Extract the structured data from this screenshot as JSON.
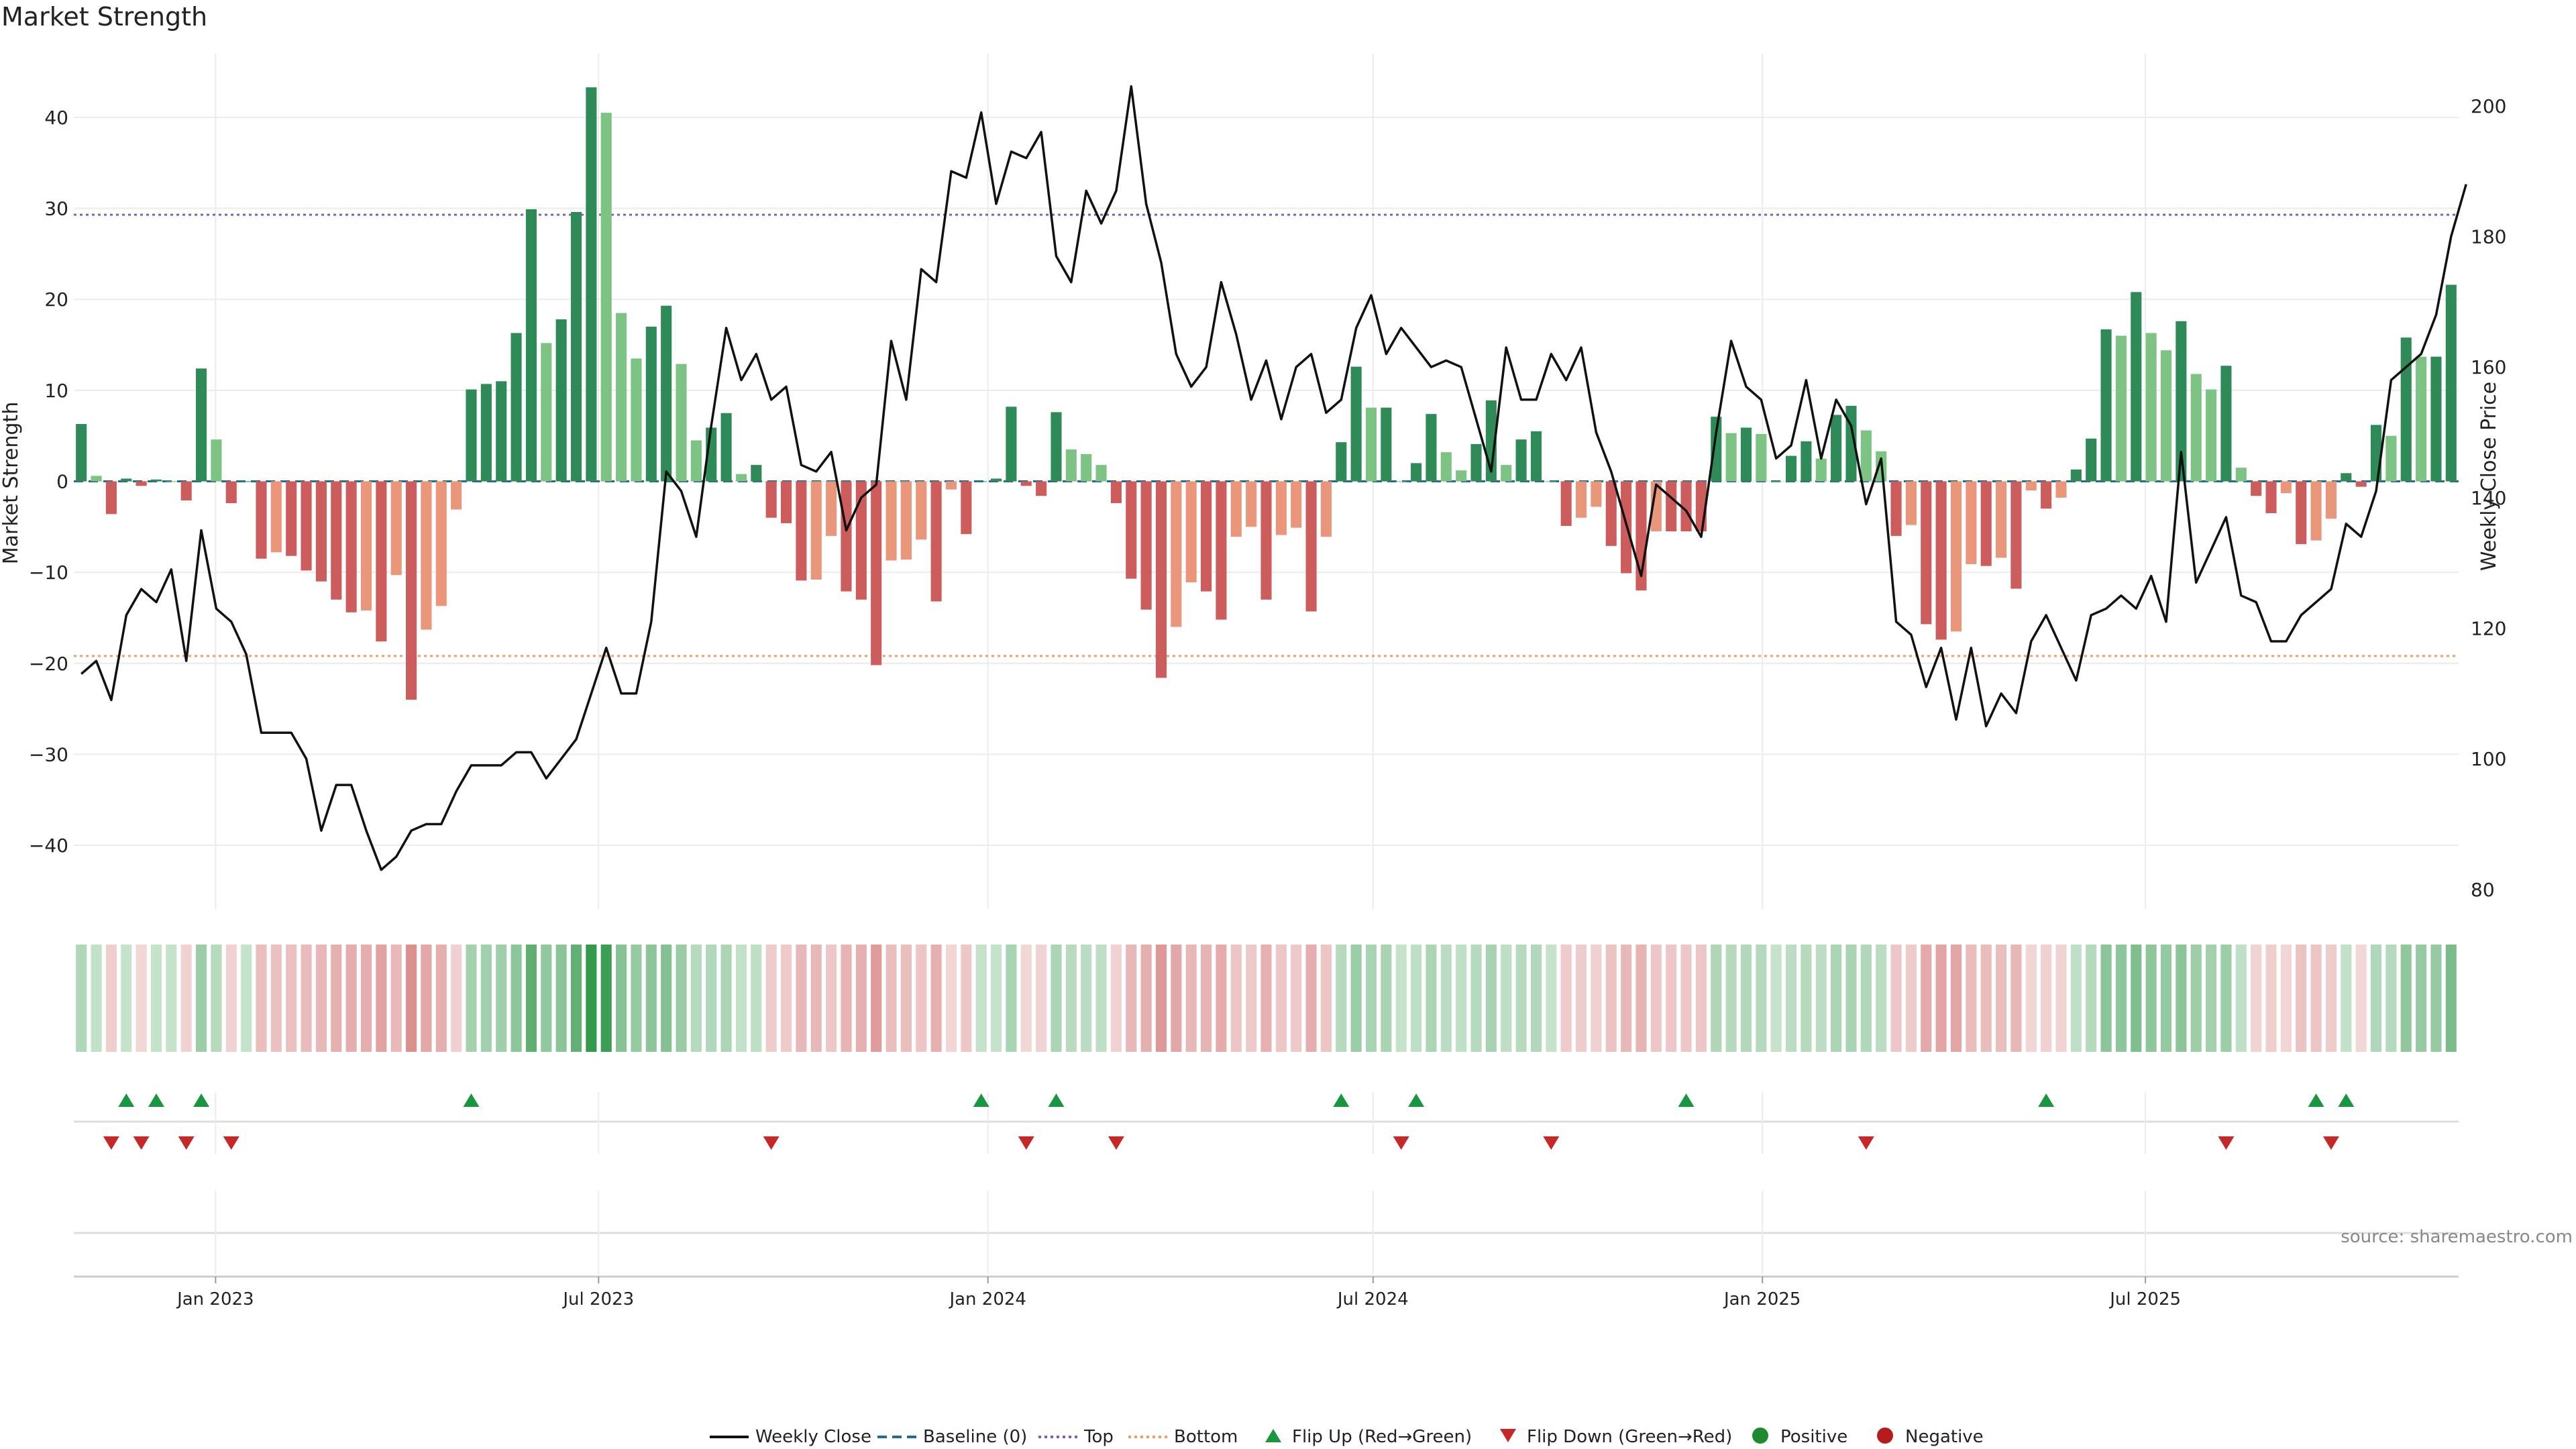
{
  "title": "Market Strength",
  "source_note": "source: sharemaestro.com",
  "colors": {
    "close_line": "#111111",
    "baseline": "#1f6e8c",
    "top_line": "#7b5fc4",
    "bottom_line": "#f0a060",
    "flip_up": "#1a9641",
    "flip_down": "#c62828",
    "positive": "#1e8a2e",
    "negative": "#b71c1c",
    "bar_strong_pos": "#2e8b57",
    "bar_weak_pos": "#7dc383",
    "bar_strong_neg": "#cd5c5c",
    "bar_weak_neg": "#e9967a"
  },
  "chart_data": {
    "type": "bar",
    "title": "Market Strength",
    "ylabel": "Market Strength",
    "y2label": "Weekly Close Price",
    "ylim": [
      -47,
      47
    ],
    "y2lim": [
      77,
      208
    ],
    "yticks": [
      -40,
      -30,
      -20,
      -10,
      0,
      10,
      20,
      30,
      40
    ],
    "y2ticks": [
      80,
      100,
      120,
      140,
      160,
      180,
      200
    ],
    "x_start_date": "2022-10-26",
    "x_end_date": "2025-11-26",
    "xticks": [
      {
        "date": "2023-01-01",
        "label": "Jan 2023"
      },
      {
        "date": "2023-07-01",
        "label": "Jul 2023"
      },
      {
        "date": "2024-01-01",
        "label": "Jan 2024"
      },
      {
        "date": "2024-07-01",
        "label": "Jul 2024"
      },
      {
        "date": "2025-01-01",
        "label": "Jan 2025"
      },
      {
        "date": "2025-07-01",
        "label": "Jul 2025"
      }
    ],
    "top_level": 29.3,
    "bottom_level": -19.2,
    "grid": true,
    "legend_position": "bottom",
    "legend": [
      "Weekly Close",
      "Baseline (0)",
      "Top",
      "Bottom",
      "Flip Up (Red→Green)",
      "Flip Down (Green→Red)",
      "Positive",
      "Negative"
    ],
    "strength": [
      6.3,
      0.6,
      -3.6,
      0.3,
      -0.5,
      0.2,
      0,
      -2.1,
      12.4,
      4.6,
      -2.4,
      0,
      -8.5,
      -7.8,
      -8.2,
      -9.8,
      -11,
      -13,
      -14.4,
      -14.2,
      -17.6,
      -10.3,
      -24,
      -16.3,
      -13.7,
      -3.1,
      10.1,
      10.7,
      11.0,
      16.3,
      29.9,
      15.2,
      17.8,
      29.6,
      43.3,
      40.5,
      18.5,
      13.5,
      17.0,
      19.3,
      12.9,
      4.5,
      5.9,
      7.5,
      0.8,
      1.8,
      -4.0,
      -4.6,
      -10.9,
      -10.8,
      -6.0,
      -12.1,
      -13.0,
      -20.2,
      -8.7,
      -8.6,
      -6.4,
      -13.2,
      -0.9,
      -5.8,
      0,
      0.3,
      8.2,
      -0.5,
      -1.6,
      7.6,
      3.5,
      3.0,
      1.8,
      -2.4,
      -10.7,
      -14.1,
      -21.6,
      -16.0,
      -11.1,
      -12.1,
      -15.2,
      -6.1,
      -5.0,
      -13.0,
      -5.9,
      -5.1,
      -14.3,
      -6.1,
      4.3,
      12.6,
      8.1,
      8.1,
      0,
      2.0,
      7.4,
      3.2,
      1.2,
      4.1,
      8.9,
      1.8,
      4.6,
      5.5,
      0,
      -4.9,
      -4.0,
      -2.8,
      -7.1,
      -10.1,
      -12.0,
      -5.5,
      -5.5,
      -5.5,
      -5.5,
      7.1,
      5.3,
      5.9,
      5.2,
      0,
      2.8,
      4.4,
      2.5,
      7.3,
      8.3,
      5.6,
      3.3,
      -6.0,
      -4.8,
      -15.7,
      -17.4,
      -16.5,
      -9.1,
      -9.3,
      -8.4,
      -11.8,
      -1.0,
      -3.0,
      -1.8,
      1.3,
      4.7,
      16.7,
      16.0,
      20.8,
      16.3,
      14.4,
      17.6,
      11.8,
      10.1,
      12.7,
      1.5,
      -1.6,
      -3.5,
      -1.3,
      -6.9,
      -6.5,
      -4.1,
      0.9,
      -0.6,
      6.2,
      5.0,
      15.8,
      13.7,
      13.7,
      21.6
    ],
    "weekly_close": [
      113,
      115,
      109,
      122,
      126,
      124,
      129,
      115,
      135,
      123,
      121,
      116,
      104,
      104,
      104,
      100,
      89,
      96,
      96,
      89,
      83,
      85,
      89,
      90,
      90,
      95,
      99,
      99,
      99,
      101,
      101,
      97,
      100,
      103,
      110,
      117,
      110,
      110,
      121,
      144,
      141,
      134,
      151,
      166,
      158,
      162,
      155,
      157,
      145,
      144,
      147,
      135,
      140,
      142,
      164,
      155,
      175,
      173,
      190,
      189,
      199,
      185,
      193,
      192,
      196,
      177,
      173,
      187,
      182,
      187,
      203,
      185,
      176,
      162,
      157,
      160,
      173,
      165,
      155,
      161,
      152,
      160,
      162,
      153,
      155,
      166,
      171,
      162,
      166,
      163,
      160,
      161,
      160,
      152,
      144,
      163,
      155,
      155,
      162,
      158,
      163,
      150,
      144,
      136,
      128,
      142,
      140,
      138,
      134,
      150,
      164,
      157,
      155,
      146,
      148,
      158,
      146,
      155,
      151,
      139,
      146,
      121,
      119,
      111,
      117,
      106,
      117,
      105,
      110,
      107,
      118,
      122,
      117,
      112,
      122,
      123,
      125,
      123,
      128,
      121,
      147,
      127,
      132,
      137,
      125,
      124,
      118,
      118,
      122,
      124,
      126,
      136,
      134,
      141,
      158,
      160,
      162,
      168,
      180,
      188
    ],
    "flip_up_weeks": [
      3,
      5,
      8,
      26,
      60,
      65,
      84,
      89,
      107,
      131,
      149,
      151
    ],
    "flip_down_weeks": [
      2,
      4,
      7,
      10,
      46,
      63,
      69,
      88,
      98,
      119,
      143,
      150
    ]
  }
}
